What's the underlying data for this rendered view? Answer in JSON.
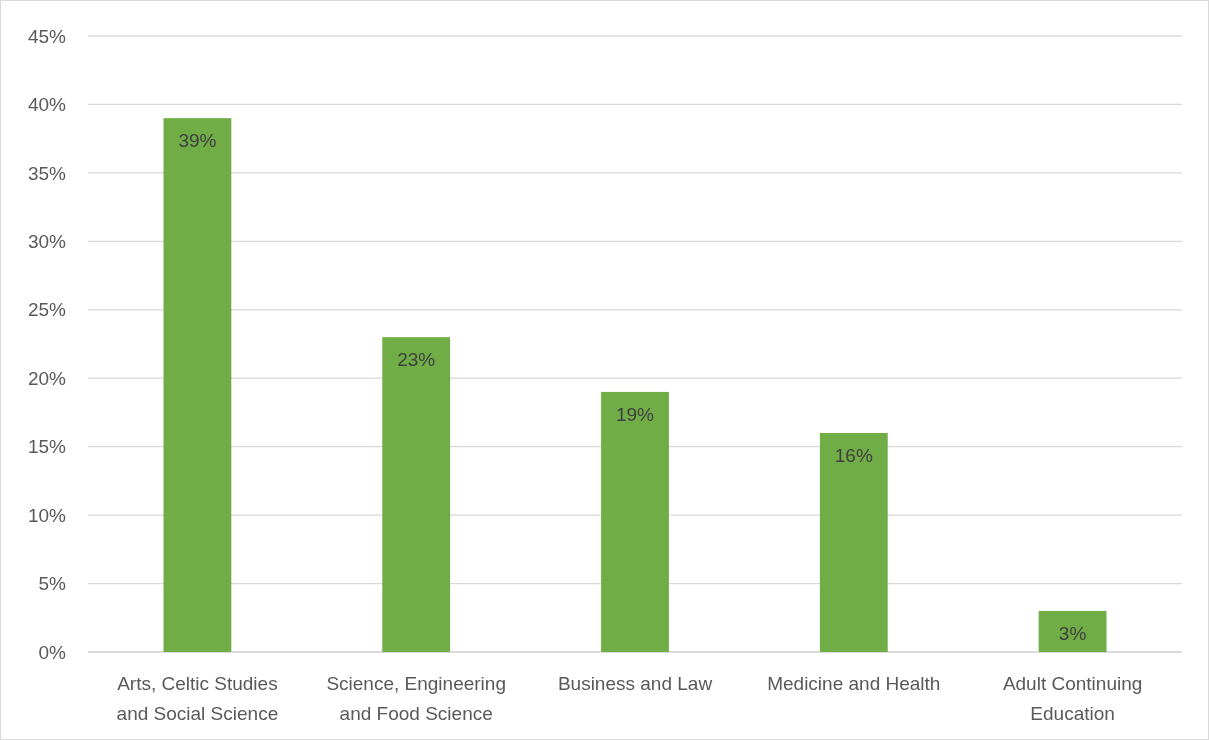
{
  "chart_data": {
    "type": "bar",
    "categories": [
      "Arts, Celtic Studies and Social Science",
      "Science, Engineering and Food Science",
      "Business and Law",
      "Medicine and Health",
      "Adult Continuing Education"
    ],
    "values": [
      39,
      23,
      19,
      16,
      3
    ],
    "value_labels": [
      "39%",
      "23%",
      "19%",
      "16%",
      "3%"
    ],
    "color": "#70ad47",
    "ylim": [
      0,
      45
    ],
    "yticks": [
      {
        "value": 0,
        "label": "0%"
      },
      {
        "value": 5,
        "label": "5%"
      },
      {
        "value": 10,
        "label": "10%"
      },
      {
        "value": 15,
        "label": "15%"
      },
      {
        "value": 20,
        "label": "20%"
      },
      {
        "value": 25,
        "label": "25%"
      },
      {
        "value": 30,
        "label": "30%"
      },
      {
        "value": 35,
        "label": "35%"
      },
      {
        "value": 40,
        "label": "40%"
      },
      {
        "value": 45,
        "label": "45%"
      }
    ],
    "grid": "y"
  }
}
